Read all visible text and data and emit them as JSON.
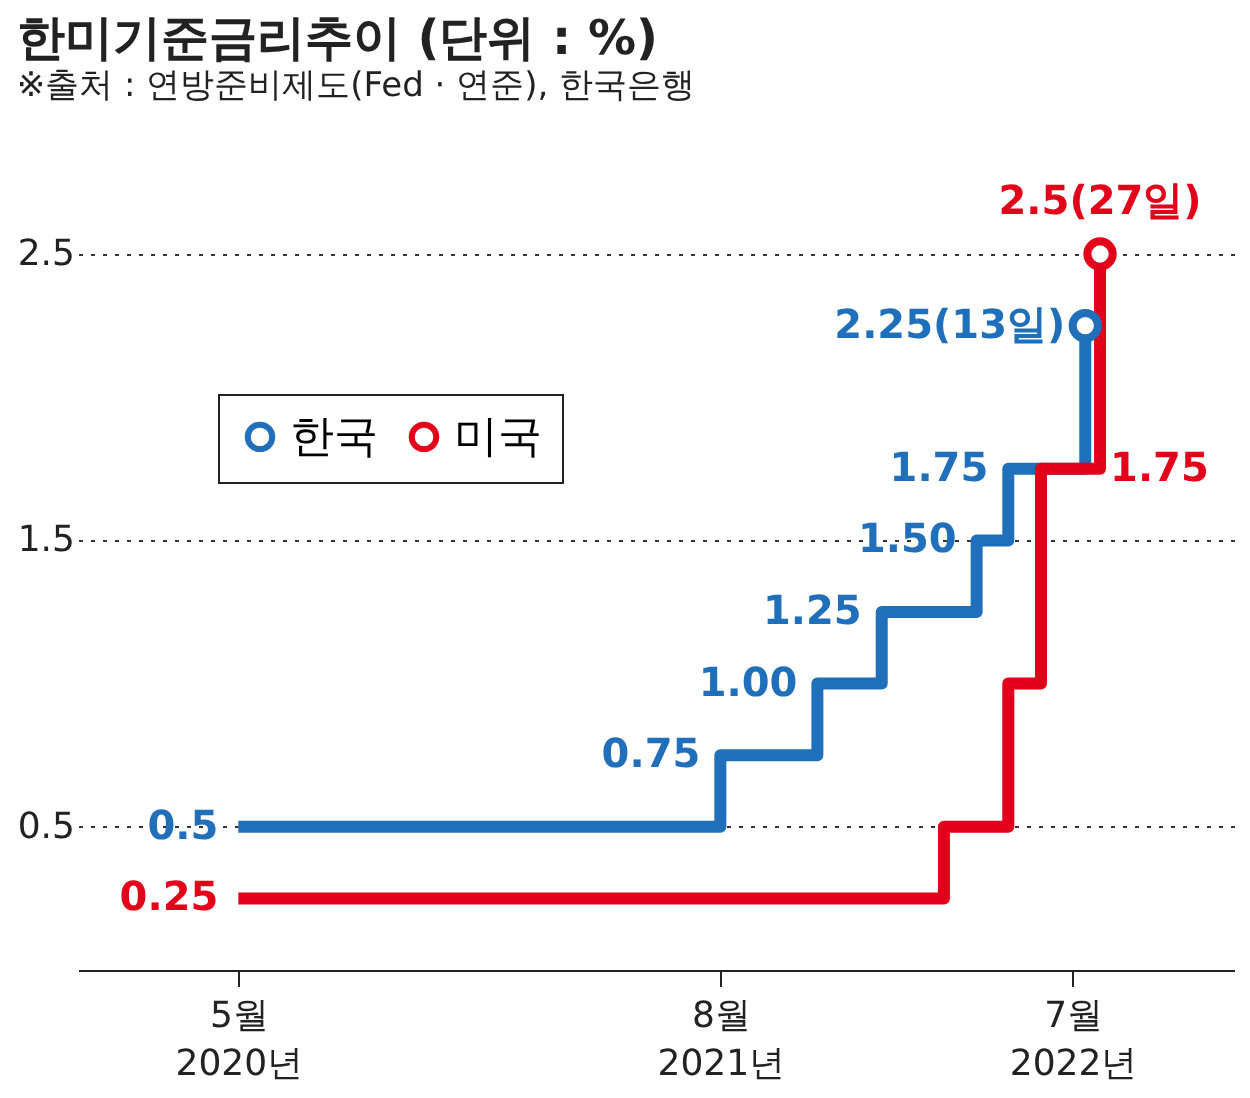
{
  "chart_data": {
    "type": "step",
    "title": "한미기준금리추이 (단위 : %)",
    "subtitle": "※출처 : 연방준비제도(Fed · 연준), 한국은행",
    "xlim": [
      "2019-12",
      "2022-12"
    ],
    "xticks": [
      {
        "value": "2020-05",
        "label": "5월\n2020년"
      },
      {
        "value": "2021-08",
        "label": "8월\n2021년"
      },
      {
        "value": "2022-07",
        "label": "7월\n2022년"
      }
    ],
    "ylim": [
      0,
      2.5
    ],
    "yticks": [
      0.5,
      1.5,
      2.5
    ],
    "grid": "y",
    "legend": "top left",
    "series": [
      {
        "name": "한국",
        "color": "#1f6fba",
        "x": [
          "2020-05",
          "2021-08",
          "2021-11",
          "2022-01",
          "2022-04",
          "2022-05",
          "2022-07-13"
        ],
        "values": [
          0.5,
          0.75,
          1.0,
          1.25,
          1.5,
          1.75,
          2.25
        ],
        "value_labels": [
          "0.5",
          "0.75",
          "1.00",
          "1.25",
          "1.50",
          "1.75",
          "2.25(13일)"
        ]
      },
      {
        "name": "미국",
        "color": "#e2001a",
        "x": [
          "2020-05",
          "2022-03",
          "2022-05",
          "2022-06",
          "2022-07-27"
        ],
        "values": [
          0.25,
          0.5,
          1.0,
          1.75,
          2.5
        ],
        "value_labels": [
          "0.25",
          null,
          null,
          "1.75",
          "2.5(27일)"
        ]
      }
    ]
  }
}
